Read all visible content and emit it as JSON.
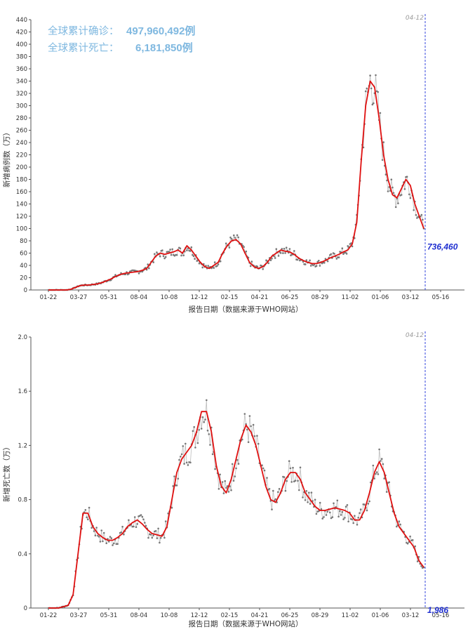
{
  "summary": {
    "confirmed_label": "全球累计确诊：",
    "confirmed_value": "497,960,492例",
    "deaths_label": "全球累计死亡：",
    "deaths_value": "6,181,850例"
  },
  "colors": {
    "trend_line": "#e01010",
    "daily_points": "#777777",
    "marker_line": "#3344dd",
    "summary_text": "#7fb8e0"
  },
  "chart_data": [
    {
      "type": "line",
      "xlabel": "报告日期（数据来源于WHO网站）",
      "ylabel": "新增病例数（万）",
      "x_ticks": [
        "01-22",
        "03-27",
        "05-31",
        "08-04",
        "10-08",
        "12-12",
        "02-15",
        "04-21",
        "06-25",
        "08-29",
        "11-02",
        "01-06",
        "03-12",
        "05-16"
      ],
      "y_ticks": [
        "0",
        "20",
        "40",
        "60",
        "80",
        "100",
        "120",
        "140",
        "160",
        "180",
        "200",
        "220",
        "240",
        "260",
        "280",
        "300",
        "320",
        "340",
        "360",
        "380",
        "400",
        "420",
        "440"
      ],
      "ylim": [
        0,
        440
      ],
      "marker_date": "04-12",
      "last_value_label": "736,460",
      "series": [
        {
          "values": [
            0,
            0,
            0,
            0,
            0,
            1,
            4,
            7,
            8,
            8,
            9,
            10,
            12,
            15,
            18,
            22,
            25,
            27,
            28,
            29,
            30,
            32,
            35,
            45,
            55,
            60,
            58,
            60,
            62,
            65,
            60,
            72,
            65,
            55,
            45,
            38,
            35,
            40,
            45,
            60,
            72,
            80,
            82,
            75,
            60,
            45,
            38,
            35,
            38,
            45,
            55,
            60,
            65,
            63,
            62,
            58,
            52,
            48,
            45,
            43,
            43,
            45,
            48,
            52,
            55,
            58,
            62,
            65,
            75,
            110,
            210,
            300,
            340,
            330,
            280,
            220,
            180,
            155,
            150,
            165,
            180,
            170,
            140,
            120,
            100
          ]
        }
      ]
    },
    {
      "type": "line",
      "xlabel": "报告日期（数据来源于WHO网站）",
      "ylabel": "新增死亡数（万）",
      "x_ticks": [
        "01-22",
        "03-27",
        "05-31",
        "08-04",
        "10-08",
        "12-12",
        "02-15",
        "04-21",
        "06-25",
        "08-29",
        "11-02",
        "01-06",
        "03-12",
        "05-16"
      ],
      "y_ticks": [
        "0",
        "0.4",
        "0.8",
        "1.2",
        "1.6",
        "2.0"
      ],
      "ylim": [
        0,
        2.0
      ],
      "marker_date": "04-12",
      "last_value_label": "1,986",
      "series": [
        {
          "values": [
            0,
            0,
            0,
            0.01,
            0.02,
            0.1,
            0.4,
            0.7,
            0.7,
            0.6,
            0.55,
            0.52,
            0.5,
            0.5,
            0.52,
            0.55,
            0.6,
            0.63,
            0.65,
            0.62,
            0.58,
            0.55,
            0.54,
            0.53,
            0.6,
            0.8,
            1.0,
            1.1,
            1.15,
            1.2,
            1.3,
            1.45,
            1.45,
            1.3,
            1.05,
            0.9,
            0.85,
            0.95,
            1.1,
            1.25,
            1.35,
            1.3,
            1.2,
            1.05,
            0.9,
            0.8,
            0.78,
            0.85,
            0.95,
            1.0,
            1.0,
            0.95,
            0.85,
            0.8,
            0.75,
            0.72,
            0.72,
            0.73,
            0.74,
            0.73,
            0.72,
            0.7,
            0.65,
            0.65,
            0.72,
            0.85,
            1.0,
            1.08,
            1.0,
            0.85,
            0.7,
            0.6,
            0.55,
            0.5,
            0.45,
            0.35,
            0.3
          ]
        }
      ]
    }
  ]
}
